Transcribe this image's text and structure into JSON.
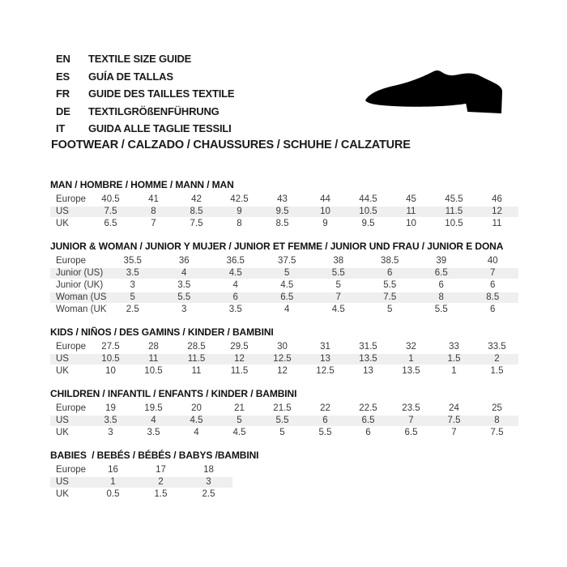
{
  "header": {
    "languages": [
      {
        "code": "EN",
        "label": "TEXTILE SIZE GUIDE"
      },
      {
        "code": "ES",
        "label": "GUÍA DE TALLAS"
      },
      {
        "code": "FR",
        "label": "GUIDE DES TAILLES TEXTILE"
      },
      {
        "code": "DE",
        "label": "TEXTILGRÖßENFÜHRUNG"
      },
      {
        "code": "IT",
        "label": "GUIDA ALLE TAGLIE TESSILI"
      }
    ],
    "category_heading": "FOOTWEAR / CALZADO / CHAUSSURES / SCHUHE / CALZATURE",
    "shoe_icon": "dress-shoe-silhouette"
  },
  "colors": {
    "header_row_bg": "#c5c5c5",
    "alt_row_bg": "#efefef",
    "row_bg": "#ffffff",
    "cell_text": "#3a3a3a",
    "title_text": "#111111",
    "shoe": "#000000"
  },
  "tables": [
    {
      "title": "MAN / HOMBRE / HOMME / MANN / MAN",
      "rows": [
        {
          "label": "Europe",
          "values": [
            "40.5",
            "41",
            "42",
            "42.5",
            "43",
            "44",
            "44.5",
            "45",
            "45.5",
            "46"
          ]
        },
        {
          "label": "US",
          "values": [
            "7.5",
            "8",
            "8.5",
            "9",
            "9.5",
            "10",
            "10.5",
            "11",
            "11.5",
            "12"
          ]
        },
        {
          "label": "UK",
          "values": [
            "6.5",
            "7",
            "7.5",
            "8",
            "8.5",
            "9",
            "9.5",
            "10",
            "10.5",
            "11"
          ]
        }
      ]
    },
    {
      "title": "JUNIOR & WOMAN / JUNIOR Y MUJER / JUNIOR ET FEMME / JUNIOR UND FRAU / JUNIOR E DONA",
      "rows": [
        {
          "label": "Europe",
          "values": [
            "35.5",
            "36",
            "36.5",
            "37.5",
            "38",
            "38.5",
            "39",
            "40"
          ]
        },
        {
          "label": "Junior (US)",
          "values": [
            "3.5",
            "4",
            "4.5",
            "5",
            "5.5",
            "6",
            "6.5",
            "7"
          ]
        },
        {
          "label": "Junior (UK)",
          "values": [
            "3",
            "3.5",
            "4",
            "4.5",
            "5",
            "5.5",
            "6",
            "6"
          ]
        },
        {
          "label": "Woman (US)",
          "values": [
            "5",
            "5.5",
            "6",
            "6.5",
            "7",
            "7.5",
            "8",
            "8.5"
          ]
        },
        {
          "label": "Woman (UK)",
          "values": [
            "2.5",
            "3",
            "3.5",
            "4",
            "4.5",
            "5",
            "5.5",
            "6"
          ]
        }
      ]
    },
    {
      "title": "KIDS / NIÑOS / DES GAMINS / KINDER / BAMBINI",
      "rows": [
        {
          "label": "Europe",
          "values": [
            "27.5",
            "28",
            "28.5",
            "29.5",
            "30",
            "31",
            "31.5",
            "32",
            "33",
            "33.5"
          ]
        },
        {
          "label": "US",
          "values": [
            "10.5",
            "11",
            "11.5",
            "12",
            "12.5",
            "13",
            "13.5",
            "1",
            "1.5",
            "2"
          ]
        },
        {
          "label": "UK",
          "values": [
            "10",
            "10.5",
            "11",
            "11.5",
            "12",
            "12.5",
            "13",
            "13.5",
            "1",
            "1.5"
          ]
        }
      ]
    },
    {
      "title": "CHILDREN / INFANTIL / ENFANTS / KINDER / BAMBINI",
      "rows": [
        {
          "label": "Europe",
          "values": [
            "19",
            "19.5",
            "20",
            "21",
            "21.5",
            "22",
            "22.5",
            "23.5",
            "24",
            "25"
          ]
        },
        {
          "label": "US",
          "values": [
            "3.5",
            "4",
            "4.5",
            "5",
            "5.5",
            "6",
            "6.5",
            "7",
            "7.5",
            "8"
          ]
        },
        {
          "label": "UK",
          "values": [
            "3",
            "3.5",
            "4",
            "4.5",
            "5",
            "5.5",
            "6",
            "6.5",
            "7",
            "7.5"
          ]
        }
      ]
    },
    {
      "title": "BABIES  / BEBÉS / BÉBÉS / BABYS /BAMBINI",
      "rows": [
        {
          "label": "Europe",
          "values": [
            "16",
            "17",
            "18"
          ]
        },
        {
          "label": "US",
          "values": [
            "1",
            "2",
            "3"
          ]
        },
        {
          "label": "UK",
          "values": [
            "0.5",
            "1.5",
            "2.5"
          ]
        }
      ]
    }
  ]
}
